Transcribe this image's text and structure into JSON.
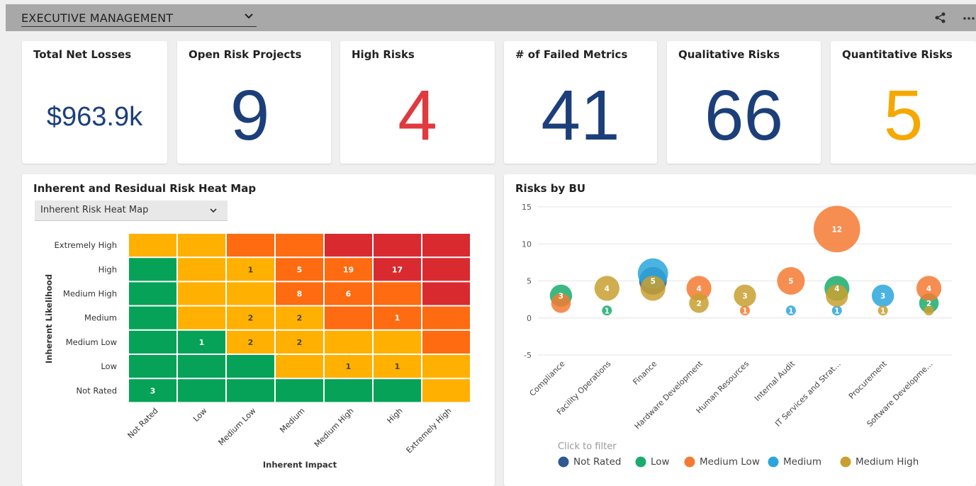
{
  "header": {
    "dashboard_select": "EXECUTIVE MANAGEMENT"
  },
  "kpis": [
    {
      "title": "Total Net Losses",
      "value": "$963.9k",
      "color": "#1c3f7a"
    },
    {
      "title": "Open Risk Projects",
      "value": "9",
      "color": "#1c3f7a"
    },
    {
      "title": "High Risks",
      "value": "4",
      "color": "#e0393e"
    },
    {
      "title": "# of Failed Metrics",
      "value": "41",
      "color": "#1c3f7a"
    },
    {
      "title": "Qualitative Risks",
      "value": "66",
      "color": "#1c3f7a"
    },
    {
      "title": "Quantitative Risks",
      "value": "5",
      "color": "#f5a800"
    }
  ],
  "heatmap": {
    "title": "Inherent and Residual Risk Heat Map",
    "select_value": "Inherent Risk Heat Map",
    "y_axis_label": "Inherent Likelihood",
    "x_axis_label": "Inherent Impact",
    "rows": [
      "Extremely High",
      "High",
      "Medium High",
      "Medium",
      "Medium Low",
      "Low",
      "Not Rated"
    ],
    "cols": [
      "Not Rated",
      "Low",
      "Medium Low",
      "Medium",
      "Medium High",
      "High",
      "Extremely High"
    ],
    "palette": {
      "G": "#06a257",
      "Y": "#ffb000",
      "O": "#fe6b10",
      "R": "#d92a30"
    },
    "colors": [
      [
        "Y",
        "Y",
        "O",
        "O",
        "R",
        "R",
        "R"
      ],
      [
        "G",
        "Y",
        "Y",
        "O",
        "O",
        "R",
        "R"
      ],
      [
        "G",
        "Y",
        "Y",
        "O",
        "O",
        "O",
        "R"
      ],
      [
        "G",
        "Y",
        "Y",
        "Y",
        "O",
        "O",
        "O"
      ],
      [
        "G",
        "G",
        "Y",
        "Y",
        "Y",
        "Y",
        "O"
      ],
      [
        "G",
        "G",
        "G",
        "Y",
        "Y",
        "Y",
        "Y"
      ],
      [
        "G",
        "G",
        "G",
        "G",
        "G",
        "G",
        "Y"
      ]
    ],
    "counts": [
      [
        "",
        "",
        "",
        "",
        "",
        "",
        ""
      ],
      [
        "",
        "",
        "1",
        "5",
        "19",
        "17",
        ""
      ],
      [
        "",
        "",
        "",
        "8",
        "6",
        "",
        ""
      ],
      [
        "",
        "",
        "2",
        "2",
        "",
        "1",
        ""
      ],
      [
        "",
        "1",
        "2",
        "2",
        "",
        "",
        ""
      ],
      [
        "",
        "",
        "",
        "",
        "1",
        "1",
        ""
      ],
      [
        "3",
        "",
        "",
        "",
        "",
        "",
        ""
      ]
    ]
  },
  "chart_data": {
    "type": "scatter",
    "title": "Risks by BU",
    "categories": [
      "Compliance",
      "Facility Operations",
      "Finance",
      "Hardware Development",
      "Human Resources",
      "Internal Audit",
      "IT Services and Strat…",
      "Procurement",
      "Software Developme…"
    ],
    "ylim": [
      -5,
      15
    ],
    "yticks": [
      15,
      10,
      5,
      0,
      -5
    ],
    "grid": true,
    "legend_hint": "Click to filter",
    "legend_position": "bottom",
    "series": [
      {
        "name": "Not Rated",
        "color": "#2f5891",
        "values": [
          null,
          null,
          5,
          null,
          null,
          null,
          null,
          null,
          null
        ]
      },
      {
        "name": "Low",
        "color": "#1aab6d",
        "values": [
          3,
          1,
          null,
          null,
          null,
          null,
          4,
          null,
          2
        ]
      },
      {
        "name": "Medium Low",
        "color": "#f47a32",
        "values": [
          2,
          null,
          null,
          4,
          1,
          5,
          12,
          null,
          4
        ]
      },
      {
        "name": "Medium",
        "color": "#2aa6dc",
        "values": [
          null,
          null,
          6,
          null,
          null,
          1,
          1,
          3,
          null
        ]
      },
      {
        "name": "Medium High",
        "color": "#c8a030",
        "values": [
          null,
          4,
          4,
          2,
          3,
          null,
          3,
          1,
          1
        ]
      }
    ],
    "labeled_points": [
      {
        "category": "Compliance",
        "y": 3,
        "label": "3"
      },
      {
        "category": "Facility Operations",
        "y": 1,
        "label": "1"
      },
      {
        "category": "Facility Operations",
        "y": 4,
        "label": "4"
      },
      {
        "category": "Finance",
        "y": 5,
        "label": "5"
      },
      {
        "category": "Hardware Development",
        "y": 4,
        "label": "4"
      },
      {
        "category": "Hardware Development",
        "y": 2,
        "label": "2"
      },
      {
        "category": "Human Resources",
        "y": 3,
        "label": "3"
      },
      {
        "category": "Human Resources",
        "y": 1,
        "label": "1"
      },
      {
        "category": "Internal Audit",
        "y": 5,
        "label": "5"
      },
      {
        "category": "Internal Audit",
        "y": 1,
        "label": "1"
      },
      {
        "category": "IT Services and Strat…",
        "y": 12,
        "label": "12"
      },
      {
        "category": "IT Services and Strat…",
        "y": 4,
        "label": "4"
      },
      {
        "category": "IT Services and Strat…",
        "y": 1,
        "label": "1"
      },
      {
        "category": "Procurement",
        "y": 3,
        "label": "3"
      },
      {
        "category": "Procurement",
        "y": 1,
        "label": "1"
      },
      {
        "category": "Software Developme…",
        "y": 4,
        "label": "4"
      },
      {
        "category": "Software Developme…",
        "y": 2,
        "label": "2"
      }
    ]
  }
}
